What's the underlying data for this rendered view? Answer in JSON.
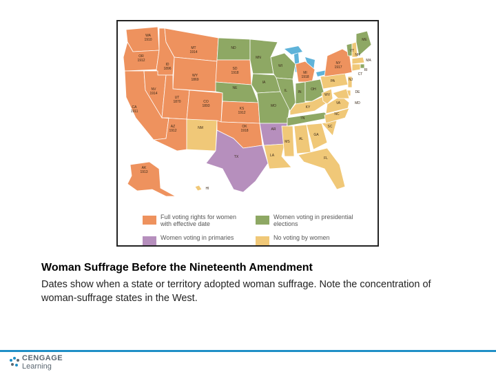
{
  "map": {
    "colors": {
      "full": "#ee925e",
      "presidential": "#8ea864",
      "primaries": "#b68fbd",
      "none": "#f0c878",
      "water": "#5fb3d9",
      "border": "#ffffff"
    },
    "state_labels": [
      {
        "id": "wa",
        "text": "WA\n1910",
        "fill": "full"
      },
      {
        "id": "or",
        "text": "OR\n1912",
        "fill": "full"
      },
      {
        "id": "ca",
        "text": "CA\n1911",
        "fill": "full"
      },
      {
        "id": "id",
        "text": "ID\n1896",
        "fill": "full"
      },
      {
        "id": "nv",
        "text": "NV\n1914",
        "fill": "full"
      },
      {
        "id": "mt",
        "text": "MT\n1914",
        "fill": "full"
      },
      {
        "id": "wy",
        "text": "WY\n1869",
        "fill": "full"
      },
      {
        "id": "ut",
        "text": "UT\n1870",
        "fill": "full"
      },
      {
        "id": "az",
        "text": "AZ\n1912",
        "fill": "full"
      },
      {
        "id": "co",
        "text": "CO\n1893",
        "fill": "full"
      },
      {
        "id": "nm",
        "text": "NM",
        "fill": "none"
      },
      {
        "id": "nd",
        "text": "ND",
        "fill": "presidential"
      },
      {
        "id": "sd",
        "text": "SD\n1918",
        "fill": "full"
      },
      {
        "id": "ne",
        "text": "NE",
        "fill": "presidential"
      },
      {
        "id": "ks",
        "text": "KS\n1912",
        "fill": "full"
      },
      {
        "id": "ok",
        "text": "OK\n1918",
        "fill": "full"
      },
      {
        "id": "tx",
        "text": "TX",
        "fill": "primaries"
      },
      {
        "id": "mn",
        "text": "MN",
        "fill": "presidential"
      },
      {
        "id": "ia",
        "text": "IA",
        "fill": "presidential"
      },
      {
        "id": "mo",
        "text": "MO",
        "fill": "presidential"
      },
      {
        "id": "ar",
        "text": "AR",
        "fill": "primaries"
      },
      {
        "id": "la",
        "text": "LA",
        "fill": "none"
      },
      {
        "id": "wi",
        "text": "WI",
        "fill": "presidential"
      },
      {
        "id": "il",
        "text": "IL",
        "fill": "presidential"
      },
      {
        "id": "mi",
        "text": "MI\n1918",
        "fill": "full"
      },
      {
        "id": "in",
        "text": "IN",
        "fill": "presidential"
      },
      {
        "id": "oh",
        "text": "OH",
        "fill": "presidential"
      },
      {
        "id": "ky",
        "text": "KY",
        "fill": "none"
      },
      {
        "id": "tn",
        "text": "TN",
        "fill": "presidential"
      },
      {
        "id": "ms",
        "text": "MS",
        "fill": "none"
      },
      {
        "id": "al",
        "text": "AL",
        "fill": "none"
      },
      {
        "id": "ga",
        "text": "GA",
        "fill": "none"
      },
      {
        "id": "fl",
        "text": "FL",
        "fill": "none"
      },
      {
        "id": "sc",
        "text": "SC",
        "fill": "none"
      },
      {
        "id": "nc",
        "text": "NC",
        "fill": "none"
      },
      {
        "id": "va",
        "text": "VA",
        "fill": "none"
      },
      {
        "id": "wv",
        "text": "WV",
        "fill": "none"
      },
      {
        "id": "pa",
        "text": "PA",
        "fill": "none"
      },
      {
        "id": "ny",
        "text": "NY\n1917",
        "fill": "full"
      },
      {
        "id": "vt",
        "text": "VT",
        "fill": "presidential"
      },
      {
        "id": "nh",
        "text": "NH",
        "fill": "none"
      },
      {
        "id": "me",
        "text": "ME",
        "fill": "presidential"
      },
      {
        "id": "ma",
        "text": "MA",
        "fill": "none"
      },
      {
        "id": "ri",
        "text": "RI",
        "fill": "presidential"
      },
      {
        "id": "ct",
        "text": "CT",
        "fill": "none"
      },
      {
        "id": "nj",
        "text": "NJ",
        "fill": "none"
      },
      {
        "id": "de",
        "text": "DE",
        "fill": "none"
      },
      {
        "id": "md",
        "text": "MD",
        "fill": "none"
      },
      {
        "id": "ak",
        "text": "AK\n1913",
        "fill": "full"
      },
      {
        "id": "hi",
        "text": "HI",
        "fill": "none"
      }
    ],
    "legend": [
      {
        "id": "full",
        "color": "full",
        "text": "Full voting rights for women\nwith effective date"
      },
      {
        "id": "presidential",
        "color": "presidential",
        "text": "Women voting in presidential\nelections"
      },
      {
        "id": "primaries",
        "color": "primaries",
        "text": "Women voting in primaries"
      },
      {
        "id": "none",
        "color": "none",
        "text": "No voting by women"
      }
    ]
  },
  "caption": {
    "title": "Woman Suffrage Before the Nineteenth Amendment",
    "text": "Dates show when a state or territory adopted woman suffrage. Note the concentration of woman-suffrage states in the West."
  },
  "footer": {
    "brand_line1": "CENGAGE",
    "brand_line2": "Learning"
  }
}
